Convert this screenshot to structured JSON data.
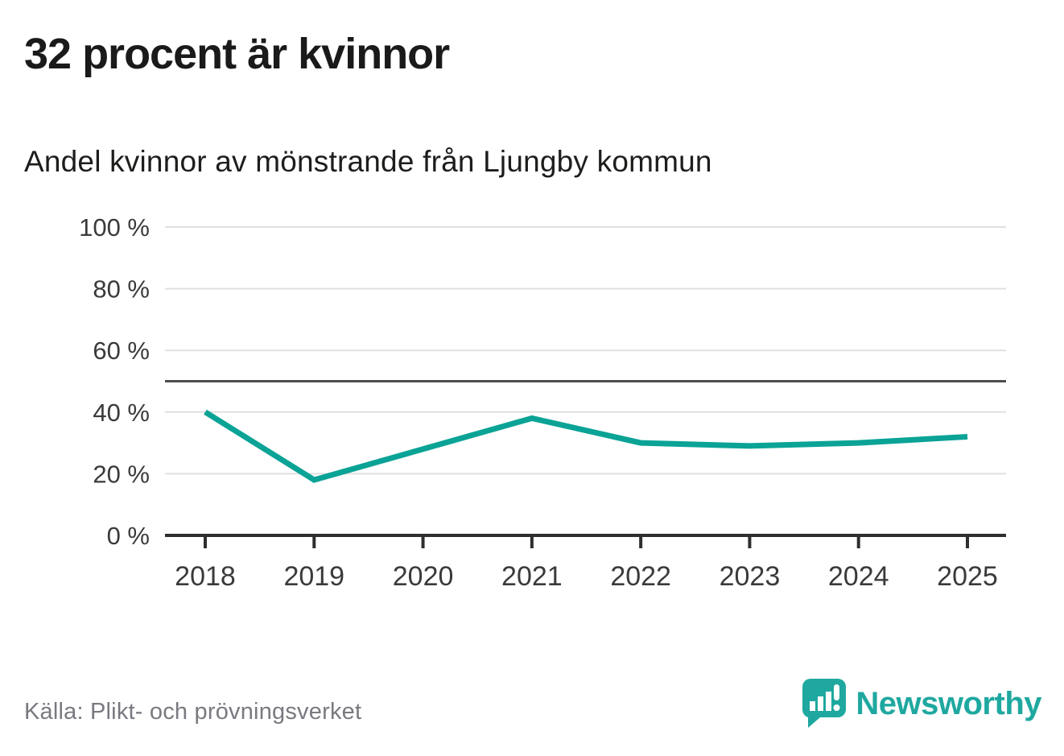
{
  "title": "32 procent är kvinnor",
  "subtitle": "Andel kvinnor av mönstrande från Ljungby kommun",
  "source": "Källa: Plikt- och prövningsverket",
  "brand": {
    "name": "Newsworthy",
    "color": "#1fa8a0",
    "icon": "newsworthy-speech-bubble-chart-icon"
  },
  "colors": {
    "line": "#0aa396",
    "gridline": "#e0e0e0",
    "reference_line": "#4d4d4d",
    "axis": "#2e2e2e",
    "tick_label": "#3a3a3a",
    "title_text": "#1a1a1a",
    "source_text": "#7b7880"
  },
  "chart_data": {
    "type": "line",
    "title": "32 procent är kvinnor",
    "subtitle": "Andel kvinnor av mönstrande från Ljungby kommun",
    "x": [
      2018,
      2019,
      2020,
      2021,
      2022,
      2023,
      2024,
      2025
    ],
    "series": [
      {
        "name": "Andel kvinnor av mönstrande",
        "values": [
          40,
          18,
          28,
          38,
          30,
          29,
          30,
          32
        ]
      }
    ],
    "unit": "%",
    "ylim": [
      0,
      100
    ],
    "yticks": [
      0,
      20,
      40,
      60,
      80,
      100
    ],
    "ytick_labels": [
      "0 %",
      "20 %",
      "40 %",
      "60 %",
      "80 %",
      "100 %"
    ],
    "xtick_labels": [
      "2018",
      "2019",
      "2020",
      "2021",
      "2022",
      "2023",
      "2024",
      "2025"
    ],
    "reference_line": 50,
    "grid": true,
    "legend": "none",
    "xlabel": "",
    "ylabel": ""
  }
}
